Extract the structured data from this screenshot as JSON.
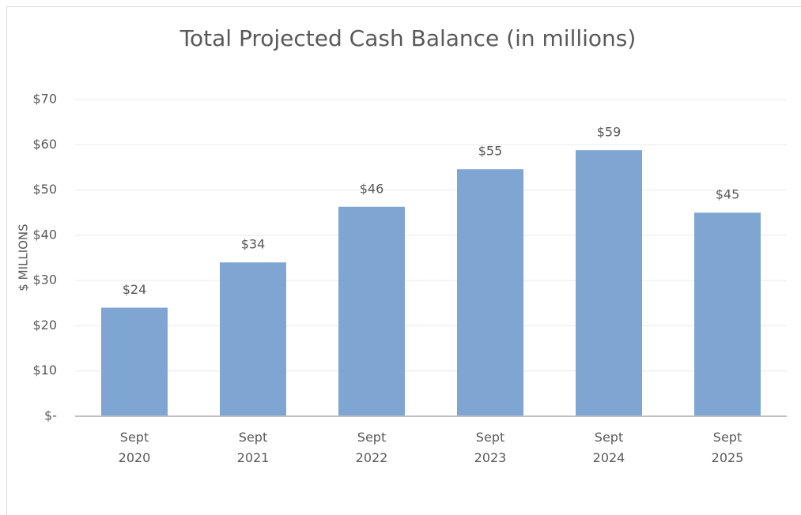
{
  "chart_data": {
    "type": "bar",
    "title": "Total Projected Cash Balance (in millions)",
    "y_label": "$ MILLIONS",
    "categories": [
      "Sept 2020",
      "Sept 2021",
      "Sept 2022",
      "Sept 2023",
      "Sept 2024",
      "Sept 2025"
    ],
    "values": [
      24,
      34,
      46.3,
      54.6,
      58.8,
      45
    ],
    "value_labels": [
      "$24",
      "$34",
      "$46",
      "$55",
      "$59",
      "$45"
    ],
    "color": "#7fa6d2",
    "ylim": [
      0,
      70
    ],
    "yticks": [
      {
        "value": 0,
        "label": "$-"
      },
      {
        "value": 10,
        "label": "$10"
      },
      {
        "value": 20,
        "label": "$20"
      },
      {
        "value": 30,
        "label": "$30"
      },
      {
        "value": 40,
        "label": "$40"
      },
      {
        "value": 50,
        "label": "$50"
      },
      {
        "value": 60,
        "label": "$60"
      },
      {
        "value": 70,
        "label": "$70"
      }
    ],
    "grid": true
  }
}
